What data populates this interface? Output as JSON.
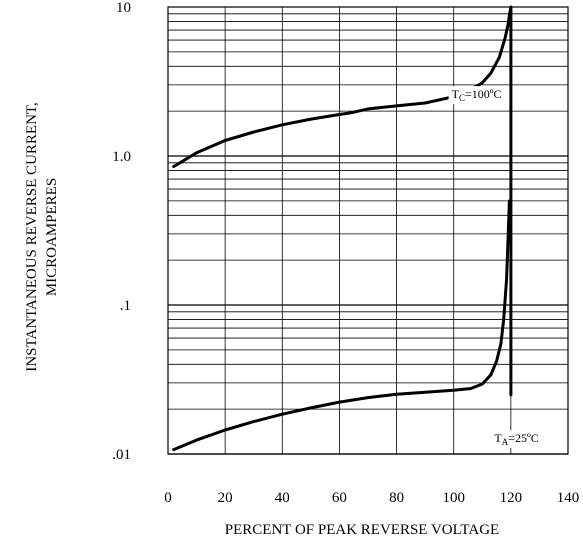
{
  "chart_data": {
    "type": "line",
    "title": "",
    "xlabel": "PERCENT OF PEAK REVERSE VOLTAGE",
    "ylabel_lines": [
      "INSTANTANEOUS REVERSE CURRENT,",
      "MICROAMPERES"
    ],
    "x_scale": "linear",
    "y_scale": "log",
    "xlim": [
      0,
      140
    ],
    "ylim": [
      0.01,
      10
    ],
    "x_ticks": [
      {
        "value": 0,
        "label": "0"
      },
      {
        "value": 20,
        "label": "20"
      },
      {
        "value": 40,
        "label": "40"
      },
      {
        "value": 60,
        "label": "60"
      },
      {
        "value": 80,
        "label": "80"
      },
      {
        "value": 100,
        "label": "100"
      },
      {
        "value": 120,
        "label": "120"
      },
      {
        "value": 140,
        "label": "140"
      }
    ],
    "y_ticks": [
      {
        "value": 0.01,
        "label": ".01"
      },
      {
        "value": 0.1,
        "label": ".1"
      },
      {
        "value": 1,
        "label": "1.0"
      },
      {
        "value": 10,
        "label": "10"
      }
    ],
    "grid": true,
    "series": [
      {
        "name": "TC=100ºC",
        "label_main": "T",
        "label_sub": "C",
        "label_rest": "=100ºC",
        "label_at": [
          108,
          2.6
        ],
        "x": [
          2,
          10,
          20,
          30,
          40,
          50,
          60,
          64,
          70,
          80,
          90,
          100,
          105,
          110,
          113,
          116,
          118,
          119,
          119.5,
          120,
          120,
          120,
          120
        ],
        "y": [
          0.85,
          1.05,
          1.27,
          1.45,
          1.62,
          1.77,
          1.9,
          1.95,
          2.07,
          2.17,
          2.27,
          2.5,
          2.72,
          3.1,
          3.6,
          4.6,
          6.2,
          7.6,
          8.8,
          10.0,
          1.0,
          0.1,
          0.025
        ]
      },
      {
        "name": "TA=25ºC",
        "label_main": "T",
        "label_sub": "A",
        "label_rest": "=25ºC",
        "label_at": [
          122,
          0.0128
        ],
        "x": [
          2,
          10,
          20,
          30,
          40,
          50,
          60,
          70,
          80,
          90,
          100,
          106,
          110,
          113,
          115,
          116.5,
          117.5,
          118.5,
          119,
          119.5
        ],
        "y": [
          0.0107,
          0.0124,
          0.0145,
          0.0165,
          0.0185,
          0.0204,
          0.0223,
          0.0239,
          0.0252,
          0.026,
          0.0268,
          0.0275,
          0.0295,
          0.034,
          0.042,
          0.055,
          0.08,
          0.15,
          0.27,
          0.5
        ]
      }
    ]
  }
}
